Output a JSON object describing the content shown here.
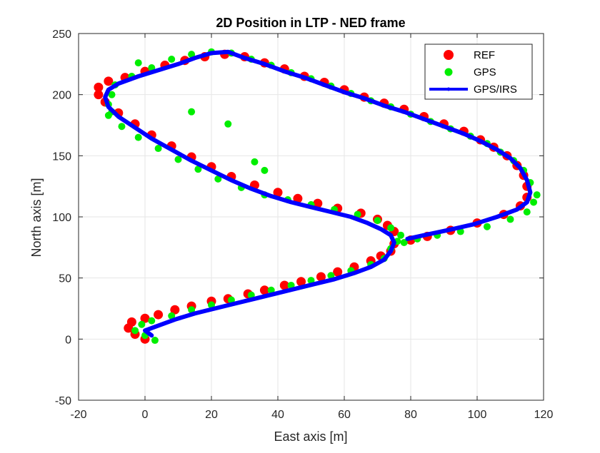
{
  "chart_data": {
    "type": "scatter",
    "title": "2D Position in LTP - NED frame",
    "xlabel": "East axis [m]",
    "ylabel": "North axis [m]",
    "xlim": [
      -20,
      120
    ],
    "ylim": [
      -50,
      250
    ],
    "xticks": [
      -20,
      0,
      20,
      40,
      60,
      80,
      100,
      120
    ],
    "yticks": [
      -50,
      0,
      50,
      100,
      150,
      200,
      250
    ],
    "grid": true,
    "legend_position": "top-right",
    "series": [
      {
        "name": "REF",
        "style": "markers",
        "color": "#ff0000",
        "points": [
          [
            0,
            0
          ],
          [
            -3,
            4
          ],
          [
            -5,
            9
          ],
          [
            -4,
            14
          ],
          [
            0,
            17
          ],
          [
            4,
            20
          ],
          [
            9,
            24
          ],
          [
            14,
            27
          ],
          [
            20,
            31
          ],
          [
            25,
            33
          ],
          [
            31,
            37
          ],
          [
            36,
            40
          ],
          [
            42,
            44
          ],
          [
            47,
            47
          ],
          [
            53,
            51
          ],
          [
            58,
            55
          ],
          [
            63,
            59
          ],
          [
            68,
            64
          ],
          [
            71,
            68
          ],
          [
            74,
            72
          ],
          [
            75,
            78
          ],
          [
            75,
            88
          ],
          [
            73,
            93
          ],
          [
            70,
            98
          ],
          [
            65,
            103
          ],
          [
            58,
            107
          ],
          [
            52,
            111
          ],
          [
            46,
            115
          ],
          [
            40,
            120
          ],
          [
            33,
            126
          ],
          [
            26,
            133
          ],
          [
            20,
            141
          ],
          [
            14,
            149
          ],
          [
            8,
            158
          ],
          [
            2,
            167
          ],
          [
            -3,
            176
          ],
          [
            -8,
            185
          ],
          [
            -12,
            194
          ],
          [
            -14,
            200
          ],
          [
            -14,
            206
          ],
          [
            -11,
            211
          ],
          [
            -6,
            214
          ],
          [
            0,
            219
          ],
          [
            6,
            224
          ],
          [
            12,
            228
          ],
          [
            18,
            231
          ],
          [
            24,
            233
          ],
          [
            30,
            231
          ],
          [
            36,
            226
          ],
          [
            42,
            221
          ],
          [
            48,
            215
          ],
          [
            54,
            210
          ],
          [
            60,
            204
          ],
          [
            66,
            198
          ],
          [
            72,
            193
          ],
          [
            78,
            188
          ],
          [
            84,
            182
          ],
          [
            90,
            176
          ],
          [
            96,
            170
          ],
          [
            101,
            163
          ],
          [
            105,
            157
          ],
          [
            109,
            150
          ],
          [
            112,
            142
          ],
          [
            114,
            134
          ],
          [
            115,
            125
          ],
          [
            115,
            116
          ],
          [
            113,
            109
          ],
          [
            108,
            102
          ],
          [
            100,
            95
          ],
          [
            92,
            89
          ],
          [
            85,
            84
          ],
          [
            80,
            81
          ]
        ]
      },
      {
        "name": "GPS",
        "style": "markers",
        "color": "#00ee00",
        "points": [
          [
            3,
            -1
          ],
          [
            0,
            3
          ],
          [
            -3,
            7
          ],
          [
            -1,
            12
          ],
          [
            2,
            15
          ],
          [
            8,
            19
          ],
          [
            14,
            24
          ],
          [
            20,
            28
          ],
          [
            26,
            32
          ],
          [
            32,
            36
          ],
          [
            38,
            40
          ],
          [
            44,
            44
          ],
          [
            50,
            48
          ],
          [
            56,
            52
          ],
          [
            62,
            56
          ],
          [
            68,
            61
          ],
          [
            72,
            66
          ],
          [
            74,
            74
          ],
          [
            76,
            80
          ],
          [
            77,
            85
          ],
          [
            74,
            91
          ],
          [
            70,
            97
          ],
          [
            64,
            102
          ],
          [
            57,
            106
          ],
          [
            50,
            110
          ],
          [
            43,
            114
          ],
          [
            36,
            118
          ],
          [
            29,
            124
          ],
          [
            22,
            131
          ],
          [
            16,
            139
          ],
          [
            10,
            147
          ],
          [
            4,
            156
          ],
          [
            -2,
            165
          ],
          [
            -7,
            174
          ],
          [
            -11,
            183
          ],
          [
            -11,
            192
          ],
          [
            -10,
            200
          ],
          [
            -9,
            208
          ],
          [
            -4,
            215
          ],
          [
            2,
            222
          ],
          [
            8,
            229
          ],
          [
            14,
            233
          ],
          [
            20,
            235
          ],
          [
            26,
            234
          ],
          [
            32,
            229
          ],
          [
            38,
            224
          ],
          [
            44,
            218
          ],
          [
            50,
            213
          ],
          [
            56,
            207
          ],
          [
            62,
            201
          ],
          [
            68,
            195
          ],
          [
            74,
            190
          ],
          [
            80,
            184
          ],
          [
            86,
            178
          ],
          [
            92,
            172
          ],
          [
            98,
            166
          ],
          [
            103,
            160
          ],
          [
            107,
            153
          ],
          [
            111,
            146
          ],
          [
            114,
            138
          ],
          [
            116,
            128
          ],
          [
            118,
            118
          ],
          [
            117,
            112
          ],
          [
            115,
            104
          ],
          [
            110,
            98
          ],
          [
            103,
            92
          ],
          [
            95,
            88
          ],
          [
            88,
            85
          ],
          [
            82,
            82
          ],
          [
            78,
            79
          ],
          [
            36,
            138
          ],
          [
            33,
            145
          ],
          [
            25,
            176
          ],
          [
            14,
            186
          ],
          [
            -2,
            226
          ],
          [
            -10,
            186
          ]
        ]
      },
      {
        "name": "GPS/IRS",
        "style": "line",
        "color": "#0000ff",
        "points": [
          [
            2,
            3
          ],
          [
            0,
            7
          ],
          [
            3,
            10
          ],
          [
            9,
            16
          ],
          [
            15,
            21
          ],
          [
            21,
            25
          ],
          [
            27,
            29
          ],
          [
            33,
            33
          ],
          [
            39,
            37
          ],
          [
            45,
            41
          ],
          [
            51,
            45
          ],
          [
            57,
            49
          ],
          [
            63,
            54
          ],
          [
            68,
            59
          ],
          [
            72,
            65
          ],
          [
            74,
            72
          ],
          [
            75,
            79
          ],
          [
            74,
            85
          ],
          [
            71,
            90
          ],
          [
            67,
            95
          ],
          [
            62,
            100
          ],
          [
            56,
            104
          ],
          [
            50,
            108
          ],
          [
            44,
            112
          ],
          [
            38,
            117
          ],
          [
            32,
            123
          ],
          [
            26,
            130
          ],
          [
            20,
            138
          ],
          [
            14,
            146
          ],
          [
            8,
            155
          ],
          [
            2,
            164
          ],
          [
            -3,
            173
          ],
          [
            -8,
            182
          ],
          [
            -11,
            190
          ],
          [
            -12,
            198
          ],
          [
            -11,
            204
          ],
          [
            -8,
            209
          ],
          [
            -2,
            215
          ],
          [
            4,
            220
          ],
          [
            10,
            225
          ],
          [
            15,
            230
          ],
          [
            20,
            234
          ],
          [
            25,
            235
          ],
          [
            30,
            230
          ],
          [
            36,
            225
          ],
          [
            42,
            219
          ],
          [
            48,
            214
          ],
          [
            54,
            208
          ],
          [
            60,
            202
          ],
          [
            66,
            197
          ],
          [
            72,
            191
          ],
          [
            78,
            186
          ],
          [
            84,
            180
          ],
          [
            90,
            174
          ],
          [
            96,
            168
          ],
          [
            101,
            162
          ],
          [
            106,
            155
          ],
          [
            110,
            148
          ],
          [
            113,
            140
          ],
          [
            115,
            130
          ],
          [
            116,
            120
          ],
          [
            115,
            112
          ],
          [
            112,
            106
          ],
          [
            106,
            100
          ],
          [
            99,
            94
          ],
          [
            91,
            89
          ],
          [
            84,
            85
          ],
          [
            79,
            82
          ]
        ]
      }
    ]
  }
}
